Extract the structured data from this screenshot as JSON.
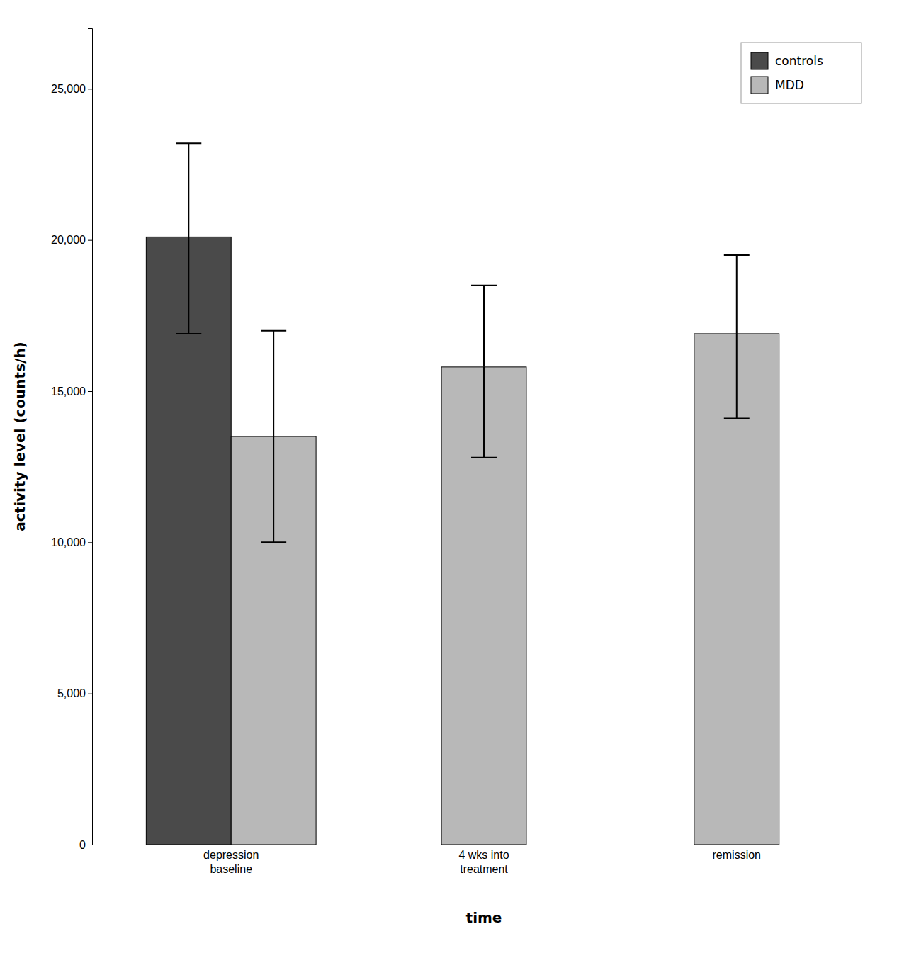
{
  "chart_data": {
    "type": "bar",
    "categories": [
      "depression\nbaseline",
      "4 wks into\ntreatment",
      "remission"
    ],
    "xlabel": "time",
    "ylabel": "activity level (counts/h)",
    "series": [
      {
        "name": "controls",
        "color": "#4a4a4a",
        "values": [
          20100,
          null,
          null
        ],
        "error_upper": [
          3100,
          null,
          null
        ],
        "error_lower": [
          3200,
          null,
          null
        ]
      },
      {
        "name": "MDD",
        "color": "#b8b8b8",
        "values": [
          13500,
          15800,
          16900
        ],
        "error_upper": [
          3500,
          2700,
          2600
        ],
        "error_lower": [
          3500,
          3000,
          2800
        ]
      }
    ],
    "ylim": [
      0,
      27000
    ],
    "yticks": [
      0,
      {
        "value": 5000,
        "label": "5,000"
      },
      {
        "value": 10000,
        "label": "10,000"
      },
      {
        "value": 15000,
        "label": "15,000"
      },
      {
        "value": 20000,
        "label": "20,000"
      },
      {
        "value": 25000,
        "label": "25,000"
      }
    ],
    "legend": "upper right",
    "grid": false
  }
}
